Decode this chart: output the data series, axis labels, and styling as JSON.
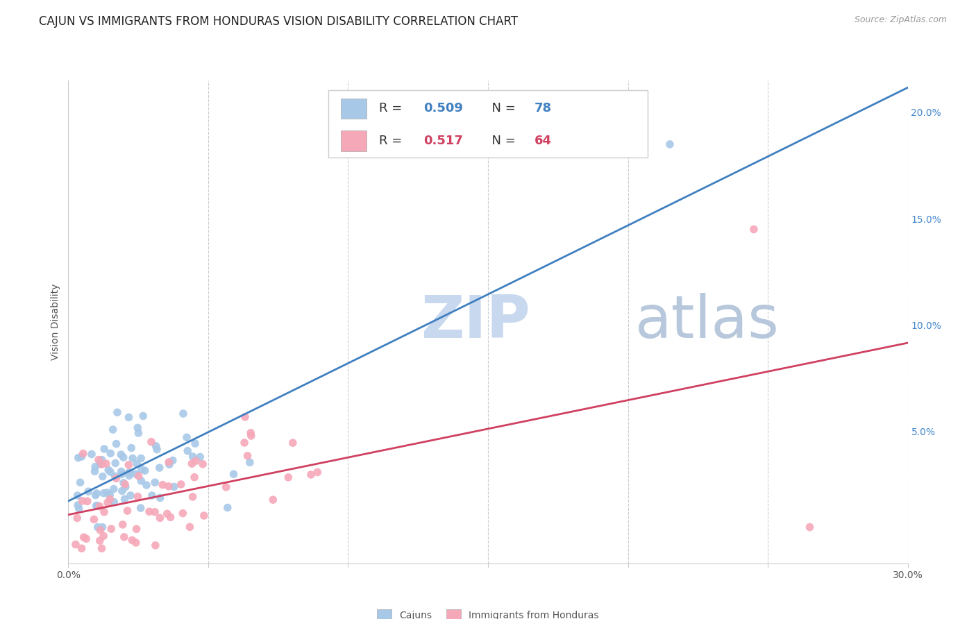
{
  "title": "CAJUN VS IMMIGRANTS FROM HONDURAS VISION DISABILITY CORRELATION CHART",
  "source": "Source: ZipAtlas.com",
  "ylabel": "Vision Disability",
  "xlim": [
    0.0,
    0.3
  ],
  "ylim": [
    -0.012,
    0.215
  ],
  "xticks": [
    0.0,
    0.05,
    0.1,
    0.15,
    0.2,
    0.25,
    0.3
  ],
  "xticklabels": [
    "0.0%",
    "",
    "",
    "",
    "",
    "",
    "30.0%"
  ],
  "ytick_positions": [
    0.0,
    0.05,
    0.1,
    0.15,
    0.2
  ],
  "yticklabels_right": [
    "",
    "5.0%",
    "10.0%",
    "15.0%",
    "20.0%"
  ],
  "cajun_R": "0.509",
  "cajun_N": "78",
  "honduras_R": "0.517",
  "honduras_N": "64",
  "cajun_color": "#A8C8E8",
  "honduras_color": "#F5A8B8",
  "cajun_line_color": "#4080C0",
  "honduras_line_color": "#D04060",
  "background_color": "#FFFFFF",
  "watermark_zip": "ZIP",
  "watermark_atlas": "atlas",
  "watermark_color": "#C8D8EE",
  "title_fontsize": 12,
  "axis_label_fontsize": 10,
  "tick_fontsize": 10,
  "legend_fontsize": 14
}
